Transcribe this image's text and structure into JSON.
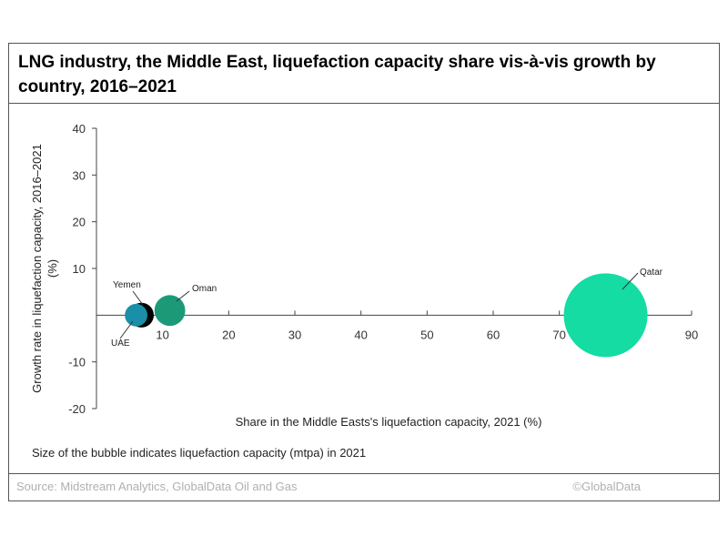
{
  "title": "LNG industry, the Middle East, liquefaction capacity share vis-à-vis growth by country, 2016–2021",
  "note": "Size of the bubble indicates liquefaction capacity (mtpa) in 2021",
  "footer": {
    "source": "Source: Midstream Analytics, GlobalData Oil and Gas",
    "copyright": "©GlobalData"
  },
  "chart_data": {
    "type": "scatter",
    "subtype": "bubble",
    "title": "LNG industry, the Middle East, liquefaction capacity share vis-à-vis growth by country, 2016–2021",
    "xlabel": "Share in the Middle Easts's liquefaction capacity, 2021 (%)",
    "ylabel": "Growth rate in liquefaction capacity, 2016–2021 (%)",
    "xlim": [
      0,
      90
    ],
    "ylim": [
      -20,
      40
    ],
    "xticks": [
      "10",
      "20",
      "30",
      "40",
      "50",
      "60",
      "70",
      "80",
      "90"
    ],
    "xtick_values": [
      10,
      20,
      30,
      40,
      50,
      60,
      70,
      80,
      90
    ],
    "yticks": [
      "40",
      "30",
      "20",
      "10",
      "-10",
      "-20"
    ],
    "ytick_values": [
      40,
      30,
      20,
      10,
      -10,
      -20
    ],
    "grid": false,
    "series": [
      {
        "name": "UAE",
        "x": 6.0,
        "y": 0,
        "size": 5.6,
        "color": "#1a8fa8"
      },
      {
        "name": "Yemen",
        "x": 6.8,
        "y": 0,
        "size": 6.7,
        "color": "#000000"
      },
      {
        "name": "Oman",
        "x": 11.1,
        "y": 1,
        "size": 10.4,
        "color": "#1c9a78"
      },
      {
        "name": "Qatar",
        "x": 77,
        "y": 0,
        "size": 77.1,
        "color": "#14dca2"
      }
    ]
  }
}
